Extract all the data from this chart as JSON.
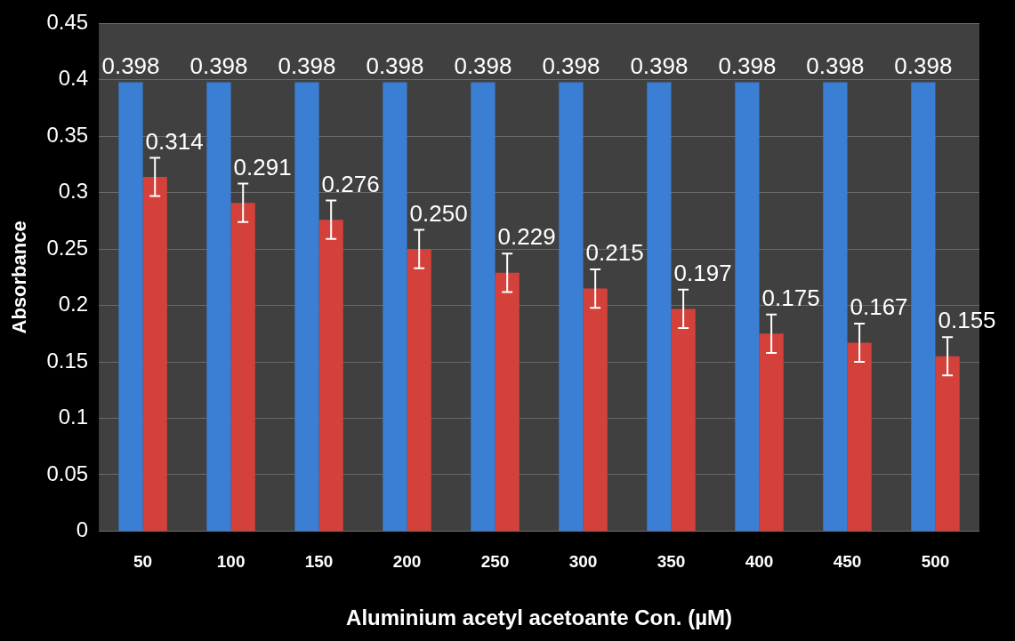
{
  "chart_data": {
    "type": "bar",
    "xlabel": "Aluminium acetyl acetoante Con. (µM)",
    "ylabel": "Absorbance",
    "categories": [
      "50",
      "100",
      "150",
      "200",
      "250",
      "300",
      "350",
      "400",
      "450",
      "500"
    ],
    "series": [
      {
        "color": "#3b7fd4",
        "values": [
          0.398,
          0.398,
          0.398,
          0.398,
          0.398,
          0.398,
          0.398,
          0.398,
          0.398,
          0.398
        ],
        "value_labels": [
          "0.398",
          "0.398",
          "0.398",
          "0.398",
          "0.398",
          "0.398",
          "0.398",
          "0.398",
          "0.398",
          "0.398"
        ]
      },
      {
        "color": "#d4403a",
        "values": [
          0.314,
          0.291,
          0.276,
          0.25,
          0.229,
          0.215,
          0.197,
          0.175,
          0.167,
          0.155
        ],
        "value_labels": [
          "0.314",
          "0.291",
          "0.276",
          "0.250",
          "0.229",
          "0.215",
          "0.197",
          "0.175",
          "0.167",
          "0.155"
        ],
        "errors": [
          0.017,
          0.017,
          0.017,
          0.017,
          0.017,
          0.017,
          0.017,
          0.017,
          0.017,
          0.017
        ]
      }
    ],
    "ylim": [
      0,
      0.45
    ],
    "yticks": [
      0,
      0.05,
      0.1,
      0.15,
      0.2,
      0.25,
      0.3,
      0.35,
      0.4,
      0.45
    ],
    "grid": "y",
    "legend": false
  }
}
